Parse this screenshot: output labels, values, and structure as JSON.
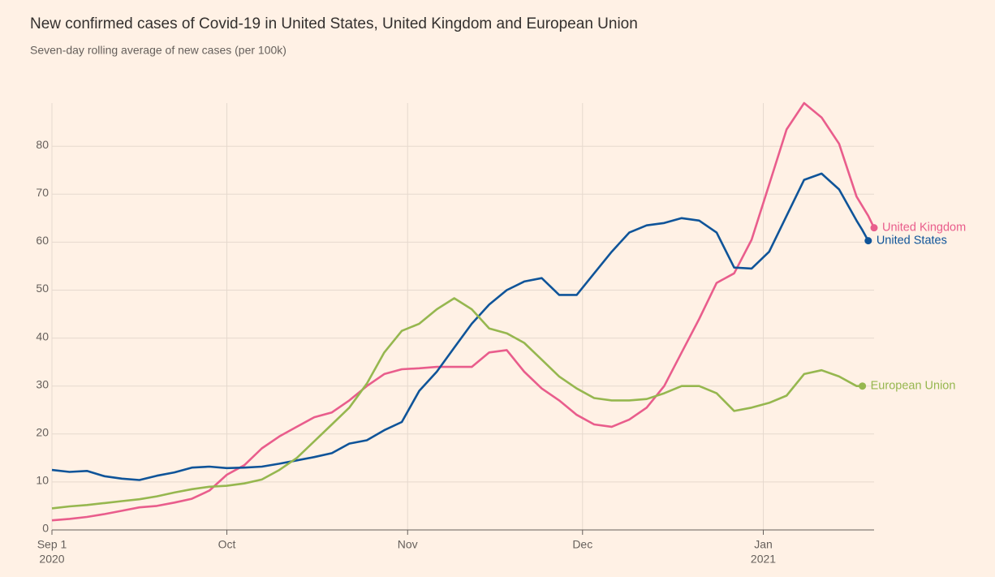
{
  "chart_data": {
    "type": "line",
    "title": "New confirmed cases of Covid-19 in United States, United Kingdom and European Union",
    "subtitle": "Seven-day rolling average of new cases (per 100k)",
    "x": [
      "2020-09-01",
      "2020-09-04",
      "2020-09-07",
      "2020-09-10",
      "2020-09-13",
      "2020-09-16",
      "2020-09-19",
      "2020-09-22",
      "2020-09-25",
      "2020-09-28",
      "2020-10-01",
      "2020-10-04",
      "2020-10-07",
      "2020-10-10",
      "2020-10-13",
      "2020-10-16",
      "2020-10-19",
      "2020-10-22",
      "2020-10-25",
      "2020-10-28",
      "2020-10-31",
      "2020-11-03",
      "2020-11-06",
      "2020-11-09",
      "2020-11-12",
      "2020-11-15",
      "2020-11-18",
      "2020-11-21",
      "2020-11-24",
      "2020-11-27",
      "2020-11-30",
      "2020-12-03",
      "2020-12-06",
      "2020-12-09",
      "2020-12-12",
      "2020-12-15",
      "2020-12-18",
      "2020-12-21",
      "2020-12-24",
      "2020-12-27",
      "2020-12-30",
      "2021-01-02",
      "2021-01-05",
      "2021-01-08",
      "2021-01-11",
      "2021-01-14",
      "2021-01-17",
      "2021-01-18",
      "2021-01-19",
      "2021-01-20"
    ],
    "series": [
      {
        "name": "United Kingdom",
        "color": "#e95d8c",
        "values": [
          2,
          2.3,
          2.7,
          3.3,
          4,
          4.7,
          5,
          5.7,
          6.5,
          8.2,
          11.5,
          13.5,
          17,
          19.5,
          21.5,
          23.5,
          24.5,
          27,
          30,
          32.5,
          33.5,
          33.7,
          34,
          34,
          34,
          37,
          37.5,
          33,
          29.5,
          27,
          24,
          22,
          21.5,
          23,
          25.5,
          30,
          37,
          44,
          51.5,
          53.5,
          60.5,
          72,
          83.5,
          89,
          86,
          80.5,
          69.5,
          67.5,
          65.5,
          63
        ]
      },
      {
        "name": "United States",
        "color": "#0f5499",
        "values": [
          12.5,
          12.1,
          12.3,
          11.2,
          10.7,
          10.4,
          11.3,
          12,
          13,
          13.2,
          12.9,
          13,
          13.2,
          13.8,
          14.5,
          15.2,
          16,
          18,
          18.7,
          20.8,
          22.5,
          29,
          33,
          38,
          43,
          47,
          50,
          51.8,
          52.5,
          49,
          49,
          53.5,
          58,
          62,
          63.5,
          64,
          65,
          64.5,
          62,
          54.7,
          54.5,
          58,
          65.5,
          73,
          74.3,
          71,
          64.5,
          62.5,
          60.3,
          null
        ]
      },
      {
        "name": "European Union",
        "color": "#96b74f",
        "values": [
          4.5,
          4.9,
          5.2,
          5.6,
          6,
          6.4,
          7,
          7.8,
          8.5,
          9,
          9.2,
          9.7,
          10.5,
          12.5,
          15,
          18.5,
          22,
          25.5,
          30.5,
          37,
          41.5,
          43,
          46,
          48.3,
          46,
          42,
          41,
          39,
          35.5,
          32,
          29.5,
          27.5,
          27,
          27,
          27.3,
          28.5,
          30,
          30,
          28.5,
          24.8,
          25.5,
          26.5,
          28,
          32.5,
          33.3,
          32,
          30,
          30,
          null,
          null
        ]
      }
    ],
    "xlim": [
      "2020-09-01",
      "2021-01-20"
    ],
    "xticks": [
      {
        "value": "2020-09-01",
        "label": "Sep 1"
      },
      {
        "value": "2020-10-01",
        "label": "Oct"
      },
      {
        "value": "2020-11-01",
        "label": "Nov"
      },
      {
        "value": "2020-12-01",
        "label": "Dec"
      },
      {
        "value": "2021-01-01",
        "label": "Jan"
      }
    ],
    "xtick_years": [
      {
        "value": "2020-09-01",
        "label": "2020"
      },
      {
        "value": "2021-01-01",
        "label": "2021"
      }
    ],
    "ylim": [
      0,
      89
    ],
    "yticks": [
      0,
      10,
      20,
      30,
      40,
      50,
      60,
      70,
      80
    ],
    "grid": true
  }
}
